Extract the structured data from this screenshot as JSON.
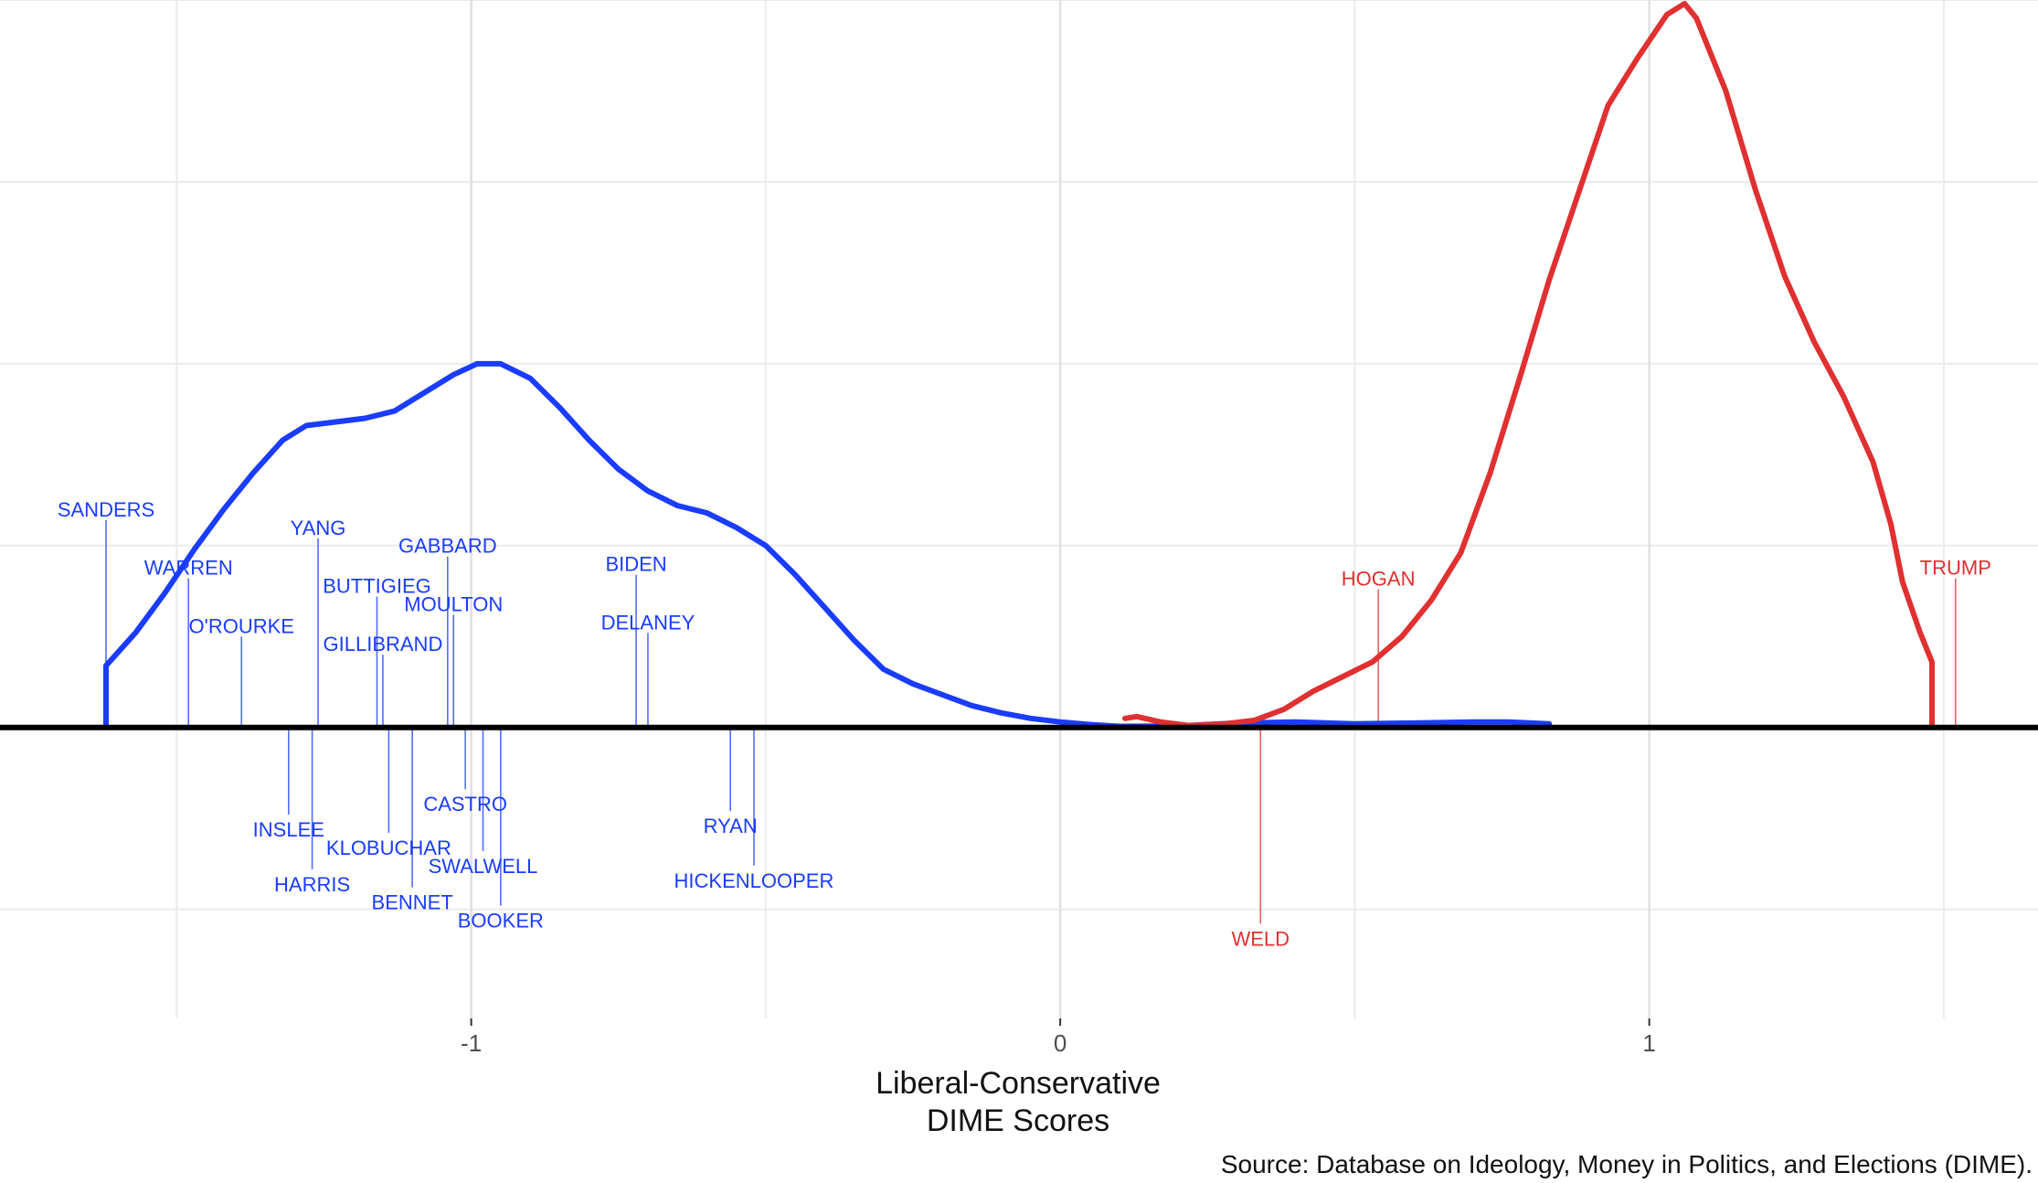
{
  "chart_data": {
    "type": "line",
    "xlabel_lines": [
      "Liberal-Conservative",
      "DIME Scores"
    ],
    "source": "Source: Database on Ideology, Money in Politics, and Elections (DIME).",
    "xlim": [
      -1.8,
      1.66
    ],
    "ylim": [
      -0.8,
      2.0
    ],
    "x_ticks": [
      -1,
      0,
      1
    ],
    "x_tick_labels": [
      "-1",
      "0",
      "1"
    ],
    "minor_x": [
      -1.5,
      -0.5,
      0.5,
      1.5
    ],
    "y_gridlines": [
      -0.5,
      0.5,
      1.0,
      1.5,
      2.0
    ],
    "grid": true,
    "colors": {
      "democrat": "#1a3cff",
      "republican": "#e03030",
      "baseline": "#000000",
      "grid": "#ebebeb"
    },
    "series": [
      {
        "party": "democrat",
        "points": [
          [
            -1.62,
            0.0
          ],
          [
            -1.62,
            0.17
          ],
          [
            -1.57,
            0.26
          ],
          [
            -1.52,
            0.37
          ],
          [
            -1.47,
            0.49
          ],
          [
            -1.42,
            0.6
          ],
          [
            -1.37,
            0.7
          ],
          [
            -1.32,
            0.79
          ],
          [
            -1.28,
            0.83
          ],
          [
            -1.23,
            0.84
          ],
          [
            -1.18,
            0.85
          ],
          [
            -1.13,
            0.87
          ],
          [
            -1.08,
            0.92
          ],
          [
            -1.03,
            0.97
          ],
          [
            -0.99,
            1.0
          ],
          [
            -0.95,
            1.0
          ],
          [
            -0.9,
            0.96
          ],
          [
            -0.85,
            0.88
          ],
          [
            -0.8,
            0.79
          ],
          [
            -0.75,
            0.71
          ],
          [
            -0.7,
            0.65
          ],
          [
            -0.65,
            0.61
          ],
          [
            -0.6,
            0.59
          ],
          [
            -0.55,
            0.55
          ],
          [
            -0.5,
            0.5
          ],
          [
            -0.45,
            0.42
          ],
          [
            -0.4,
            0.33
          ],
          [
            -0.35,
            0.24
          ],
          [
            -0.3,
            0.16
          ],
          [
            -0.25,
            0.12
          ],
          [
            -0.2,
            0.09
          ],
          [
            -0.15,
            0.06
          ],
          [
            -0.1,
            0.04
          ],
          [
            -0.05,
            0.025
          ],
          [
            0.0,
            0.015
          ],
          [
            0.05,
            0.008
          ],
          [
            0.1,
            0.003
          ],
          [
            0.2,
            0.004
          ],
          [
            0.3,
            0.012
          ],
          [
            0.4,
            0.015
          ],
          [
            0.5,
            0.01
          ],
          [
            0.6,
            0.012
          ],
          [
            0.7,
            0.015
          ],
          [
            0.76,
            0.015
          ],
          [
            0.83,
            0.01
          ]
        ]
      },
      {
        "party": "republican",
        "points": [
          [
            0.11,
            0.025
          ],
          [
            0.13,
            0.03
          ],
          [
            0.17,
            0.015
          ],
          [
            0.22,
            0.005
          ],
          [
            0.28,
            0.01
          ],
          [
            0.33,
            0.02
          ],
          [
            0.38,
            0.05
          ],
          [
            0.43,
            0.1
          ],
          [
            0.48,
            0.14
          ],
          [
            0.53,
            0.18
          ],
          [
            0.58,
            0.25
          ],
          [
            0.63,
            0.35
          ],
          [
            0.68,
            0.48
          ],
          [
            0.73,
            0.7
          ],
          [
            0.78,
            0.96
          ],
          [
            0.83,
            1.23
          ],
          [
            0.88,
            1.47
          ],
          [
            0.93,
            1.71
          ],
          [
            0.98,
            1.84
          ],
          [
            1.03,
            1.96
          ],
          [
            1.06,
            1.99
          ],
          [
            1.08,
            1.95
          ],
          [
            1.13,
            1.75
          ],
          [
            1.18,
            1.48
          ],
          [
            1.23,
            1.24
          ],
          [
            1.28,
            1.06
          ],
          [
            1.33,
            0.91
          ],
          [
            1.38,
            0.73
          ],
          [
            1.41,
            0.56
          ],
          [
            1.43,
            0.4
          ],
          [
            1.46,
            0.26
          ],
          [
            1.48,
            0.18
          ],
          [
            1.48,
            0.0
          ]
        ]
      }
    ],
    "candidates": [
      {
        "name": "SANDERS",
        "party": "democrat",
        "x": -1.62,
        "label_y": 0.58
      },
      {
        "name": "WARREN",
        "party": "democrat",
        "x": -1.48,
        "label_y": 0.42
      },
      {
        "name": "O'ROURKE",
        "party": "democrat",
        "x": -1.39,
        "label_y": 0.26
      },
      {
        "name": "YANG",
        "party": "democrat",
        "x": -1.26,
        "label_y": 0.53
      },
      {
        "name": "BUTTIGIEG",
        "party": "democrat",
        "x": -1.16,
        "label_y": 0.37
      },
      {
        "name": "GILLIBRAND",
        "party": "democrat",
        "x": -1.15,
        "label_y": 0.21
      },
      {
        "name": "GABBARD",
        "party": "democrat",
        "x": -1.04,
        "label_y": 0.48
      },
      {
        "name": "MOULTON",
        "party": "democrat",
        "x": -1.03,
        "label_y": 0.32
      },
      {
        "name": "BIDEN",
        "party": "democrat",
        "x": -0.72,
        "label_y": 0.43
      },
      {
        "name": "DELANEY",
        "party": "democrat",
        "x": -0.7,
        "label_y": 0.27
      },
      {
        "name": "INSLEE",
        "party": "democrat",
        "x": -1.31,
        "label_y": -0.3
      },
      {
        "name": "HARRIS",
        "party": "democrat",
        "x": -1.27,
        "label_y": -0.45
      },
      {
        "name": "KLOBUCHAR",
        "party": "democrat",
        "x": -1.14,
        "label_y": -0.35
      },
      {
        "name": "BENNET",
        "party": "democrat",
        "x": -1.1,
        "label_y": -0.5
      },
      {
        "name": "CASTRO",
        "party": "democrat",
        "x": -1.01,
        "label_y": -0.23
      },
      {
        "name": "SWALWELL",
        "party": "democrat",
        "x": -0.98,
        "label_y": -0.4
      },
      {
        "name": "BOOKER",
        "party": "democrat",
        "x": -0.95,
        "label_y": -0.55
      },
      {
        "name": "RYAN",
        "party": "democrat",
        "x": -0.56,
        "label_y": -0.29
      },
      {
        "name": "HICKENLOOPER",
        "party": "democrat",
        "x": -0.52,
        "label_y": -0.44
      },
      {
        "name": "HOGAN",
        "party": "republican",
        "x": 0.54,
        "label_y": 0.39
      },
      {
        "name": "TRUMP",
        "party": "republican",
        "x": 1.52,
        "label_y": 0.42
      },
      {
        "name": "WELD",
        "party": "republican",
        "x": 0.34,
        "label_y": -0.6
      }
    ]
  }
}
